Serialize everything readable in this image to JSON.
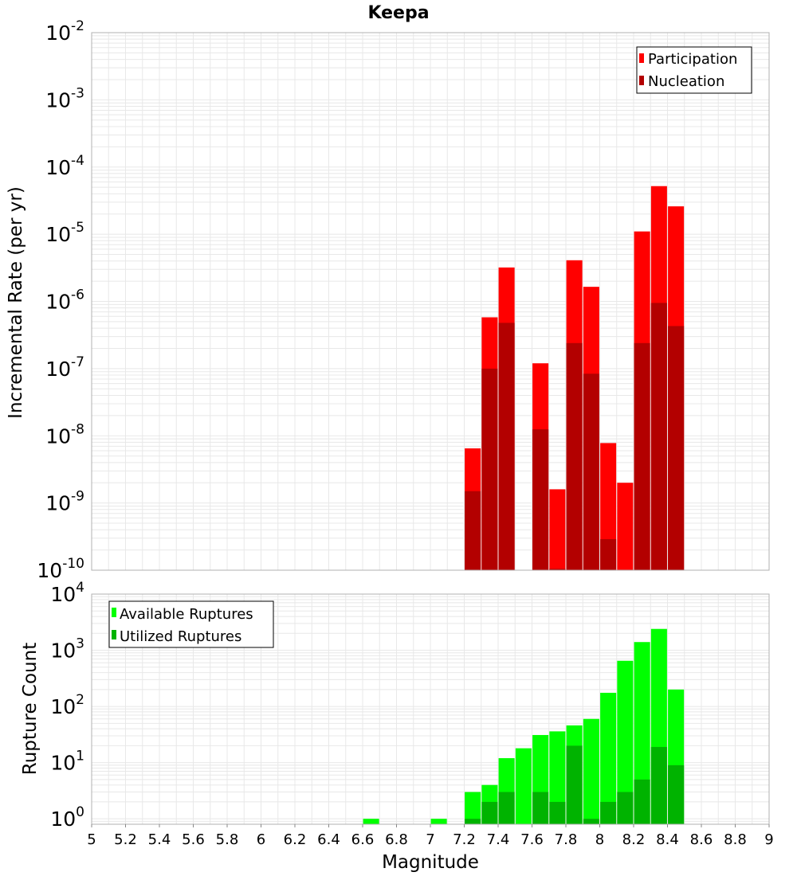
{
  "chart_data": [
    {
      "type": "bar",
      "title": "Keepa",
      "ylabel": "Incremental Rate (per yr)",
      "xlabel": "",
      "yscale": "log",
      "ylim": [
        1e-10,
        0.01
      ],
      "xlim": [
        5,
        9
      ],
      "y_ticks": [
        {
          "base": "10",
          "exp": "-10"
        },
        {
          "base": "10",
          "exp": "-9"
        },
        {
          "base": "10",
          "exp": "-8"
        },
        {
          "base": "10",
          "exp": "-7"
        },
        {
          "base": "10",
          "exp": "-6"
        },
        {
          "base": "10",
          "exp": "-5"
        },
        {
          "base": "10",
          "exp": "-4"
        },
        {
          "base": "10",
          "exp": "-3"
        },
        {
          "base": "10",
          "exp": "-2"
        }
      ],
      "legend": {
        "placement": "top-right",
        "entries": [
          "Participation",
          "Nucleation"
        ]
      },
      "colors": {
        "Participation": "#ff0000",
        "Nucleation": "#b30000"
      },
      "series": [
        {
          "name": "Participation",
          "x": [
            7.25,
            7.35,
            7.45,
            7.65,
            7.75,
            7.85,
            7.95,
            8.05,
            8.15,
            8.25,
            8.35,
            8.45
          ],
          "values": [
            6.5e-09,
            5.8e-07,
            3.2e-06,
            1.2e-07,
            1.6e-09,
            4.1e-06,
            1.65e-06,
            7.8e-09,
            2e-09,
            1.1e-05,
            5.2e-05,
            2.6e-05
          ]
        },
        {
          "name": "Nucleation",
          "x": [
            7.25,
            7.35,
            7.45,
            7.65,
            7.75,
            7.85,
            7.95,
            8.05,
            8.25,
            8.35,
            8.45
          ],
          "values": [
            1.5e-09,
            1e-07,
            4.8e-07,
            1.25e-08,
            1.05e-10,
            2.4e-07,
            8.4e-08,
            2.9e-10,
            2.4e-07,
            9.5e-07,
            4.3e-07
          ]
        }
      ]
    },
    {
      "type": "bar",
      "title": "",
      "ylabel": "Rupture Count",
      "xlabel": "Magnitude",
      "yscale": "log",
      "ylim": [
        0.8,
        10000
      ],
      "xlim": [
        5,
        9
      ],
      "x_ticks": [
        "5",
        "5.2",
        "5.4",
        "5.6",
        "5.8",
        "6",
        "6.2",
        "6.4",
        "6.6",
        "6.8",
        "7",
        "7.2",
        "7.4",
        "7.6",
        "7.8",
        "8",
        "8.2",
        "8.4",
        "8.6",
        "8.8",
        "9"
      ],
      "y_ticks": [
        {
          "base": "10",
          "exp": "0"
        },
        {
          "base": "10",
          "exp": "1"
        },
        {
          "base": "10",
          "exp": "2"
        },
        {
          "base": "10",
          "exp": "3"
        },
        {
          "base": "10",
          "exp": "4"
        }
      ],
      "legend": {
        "placement": "top-left",
        "entries": [
          "Available Ruptures",
          "Utilized Ruptures"
        ]
      },
      "colors": {
        "Available Ruptures": "#00ff00",
        "Utilized Ruptures": "#00b300"
      },
      "series": [
        {
          "name": "Available Ruptures",
          "x": [
            6.65,
            7.05,
            7.25,
            7.35,
            7.45,
            7.55,
            7.65,
            7.75,
            7.85,
            7.95,
            8.05,
            8.15,
            8.25,
            8.35,
            8.45
          ],
          "values": [
            1,
            1,
            3,
            4,
            12,
            18,
            31,
            36,
            46,
            60,
            175,
            650,
            1400,
            2400,
            200
          ]
        },
        {
          "name": "Utilized Ruptures",
          "x": [
            7.25,
            7.35,
            7.45,
            7.65,
            7.75,
            7.85,
            7.95,
            8.05,
            8.15,
            8.25,
            8.35,
            8.45
          ],
          "values": [
            1,
            2,
            3,
            3,
            2,
            20,
            1,
            2,
            3,
            5,
            19,
            9
          ]
        }
      ]
    }
  ]
}
